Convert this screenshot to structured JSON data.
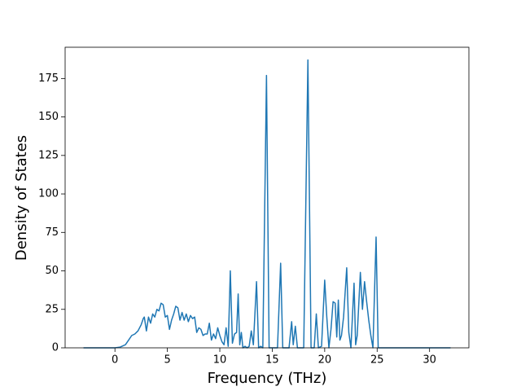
{
  "chart_data": {
    "type": "line",
    "xlabel": "Frequency (THz)",
    "ylabel": "Density of States",
    "x": [
      -3,
      0,
      0.5,
      1,
      1.3,
      1.6,
      1.9,
      2.2,
      2.5,
      2.7,
      2.8,
      3.0,
      3.2,
      3.4,
      3.6,
      3.8,
      4.0,
      4.2,
      4.4,
      4.6,
      4.8,
      5.0,
      5.2,
      5.4,
      5.6,
      5.8,
      6.0,
      6.2,
      6.4,
      6.6,
      6.8,
      7.0,
      7.2,
      7.4,
      7.6,
      7.8,
      8.0,
      8.2,
      8.4,
      8.6,
      8.8,
      9.0,
      9.2,
      9.4,
      9.6,
      9.8,
      10.0,
      10.2,
      10.4,
      10.6,
      10.8,
      11.0,
      11.2,
      11.4,
      11.6,
      11.75,
      11.9,
      12.05,
      12.2,
      12.4,
      12.6,
      12.8,
      13.0,
      13.2,
      13.5,
      13.7,
      13.9,
      14.1,
      14.45,
      14.7,
      14.9,
      15.2,
      15.5,
      15.8,
      16.0,
      16.3,
      16.6,
      16.85,
      17.0,
      17.2,
      17.4,
      17.7,
      18.0,
      18.4,
      18.7,
      19.0,
      19.2,
      19.4,
      19.7,
      20.0,
      20.2,
      20.4,
      20.6,
      20.8,
      21.0,
      21.15,
      21.3,
      21.45,
      21.6,
      21.8,
      22.1,
      22.3,
      22.5,
      22.8,
      22.95,
      23.1,
      23.4,
      23.6,
      23.8,
      24.0,
      24.2,
      24.4,
      24.6,
      24.9,
      25.1,
      25.3,
      32
    ],
    "series": [
      {
        "color": "#1f77b4",
        "values": [
          0,
          0,
          0.5,
          2,
          5,
          8,
          9,
          11,
          15,
          19,
          20,
          11,
          20,
          16,
          22,
          20,
          25,
          24,
          29,
          28,
          20,
          21,
          12,
          18,
          22,
          27,
          26,
          18,
          23,
          18,
          22,
          17,
          21,
          19,
          20,
          10,
          13,
          12,
          8,
          9,
          9,
          16,
          5,
          9,
          6,
          13,
          8,
          4,
          2,
          13,
          1,
          50,
          3,
          9,
          10,
          35,
          2,
          10,
          0,
          1,
          0,
          1,
          11,
          2,
          43,
          0,
          1,
          0,
          177,
          0,
          0,
          0,
          0,
          55,
          0,
          0,
          0,
          17,
          2,
          14,
          0,
          0,
          0,
          187,
          0,
          0,
          22,
          0,
          1,
          44,
          20,
          0,
          12,
          30,
          29,
          7,
          31,
          5,
          8,
          20,
          52,
          10,
          0,
          42,
          2,
          8,
          49,
          25,
          43,
          30,
          18,
          8,
          0,
          72,
          0,
          0,
          0
        ]
      }
    ],
    "xlim": [
      -4.75,
      33.75
    ],
    "ylim": [
      0,
      195.3
    ],
    "xticks": [
      0,
      5,
      10,
      15,
      20,
      25,
      30
    ],
    "yticks": [
      0,
      25,
      50,
      75,
      100,
      125,
      150,
      175
    ]
  }
}
